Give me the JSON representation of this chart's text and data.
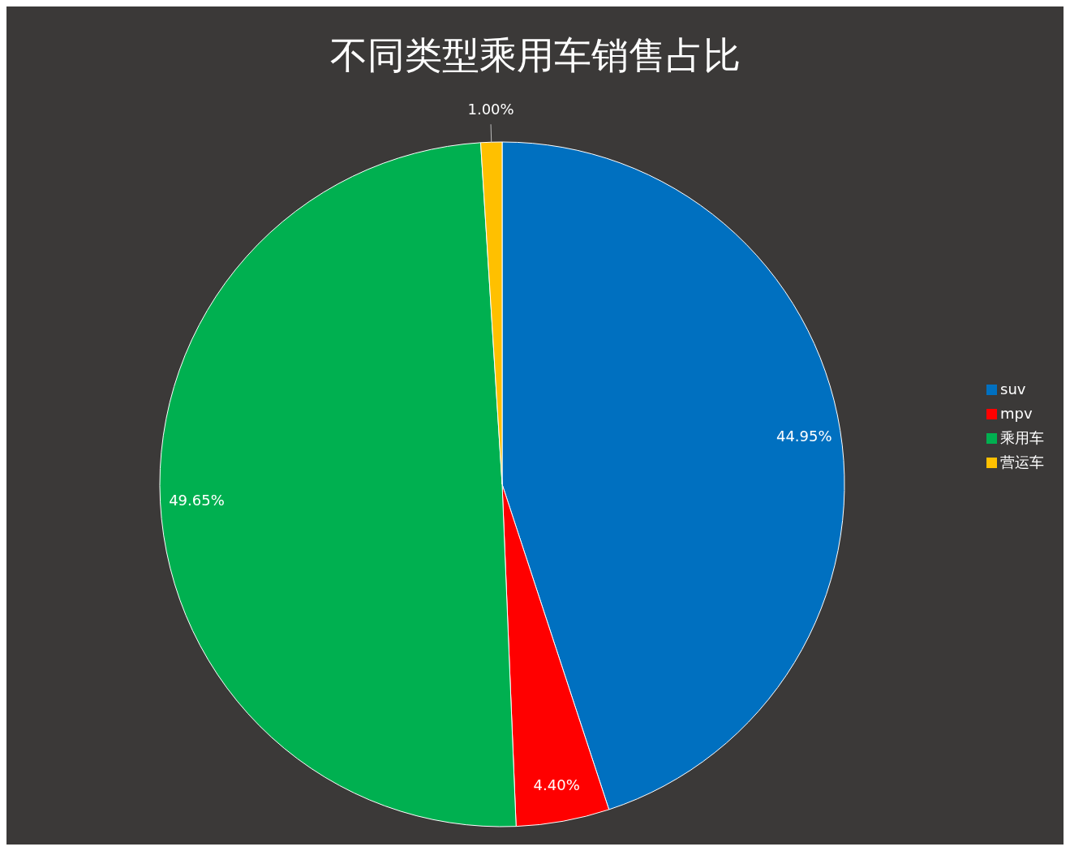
{
  "chart_data": {
    "type": "pie",
    "title": "不同类型乘用车销售占比",
    "categories": [
      "suv",
      "mpv",
      "乘用车",
      "营运车"
    ],
    "values": [
      44.95,
      4.4,
      49.65,
      1.0
    ],
    "colors": [
      "#0070c0",
      "#ff0000",
      "#00b050",
      "#ffc000"
    ],
    "value_labels": [
      "44.95%",
      "4.40%",
      "49.65%",
      "1.00%"
    ],
    "legend": "right"
  }
}
